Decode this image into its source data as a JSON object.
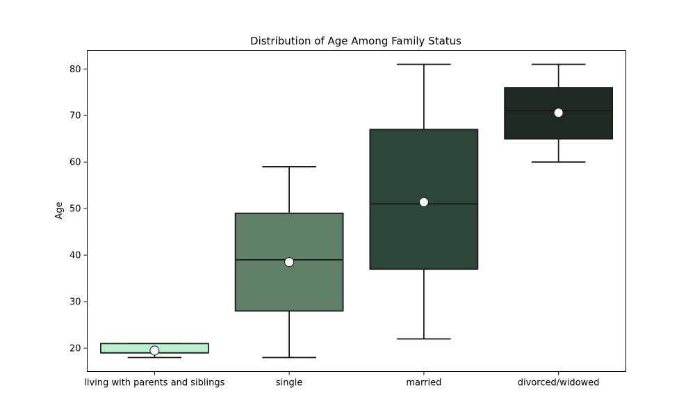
{
  "chart_data": {
    "type": "box",
    "title": "Distribution of Age Among Family Status",
    "xlabel": "",
    "ylabel": "Age",
    "ylim": [
      15,
      84
    ],
    "yticks": [
      20,
      30,
      40,
      50,
      60,
      70,
      80
    ],
    "grid": false,
    "categories": [
      "living with parents and siblings",
      "single",
      "married",
      "divorced/widowed"
    ],
    "boxes": [
      {
        "category": "living with parents and siblings",
        "whisker_low": 18,
        "q1": 19,
        "median": 19,
        "q3": 21,
        "whisker_high": 21,
        "mean": 19.5,
        "color": "#b9f0cf"
      },
      {
        "category": "single",
        "whisker_low": 18,
        "q1": 28,
        "median": 39,
        "q3": 49,
        "whisker_high": 59,
        "mean": 38.5,
        "color": "#5f7f67"
      },
      {
        "category": "married",
        "whisker_low": 22,
        "q1": 37,
        "median": 51,
        "q3": 67,
        "whisker_high": 81,
        "mean": 51.4,
        "color": "#2c4739"
      },
      {
        "category": "divorced/widowed",
        "whisker_low": 60,
        "q1": 65,
        "median": 71,
        "q3": 76,
        "whisker_high": 81,
        "mean": 70.6,
        "color": "#212923"
      }
    ],
    "line_color": "#1a1a1a",
    "mean_marker_color": "#ffffff"
  }
}
